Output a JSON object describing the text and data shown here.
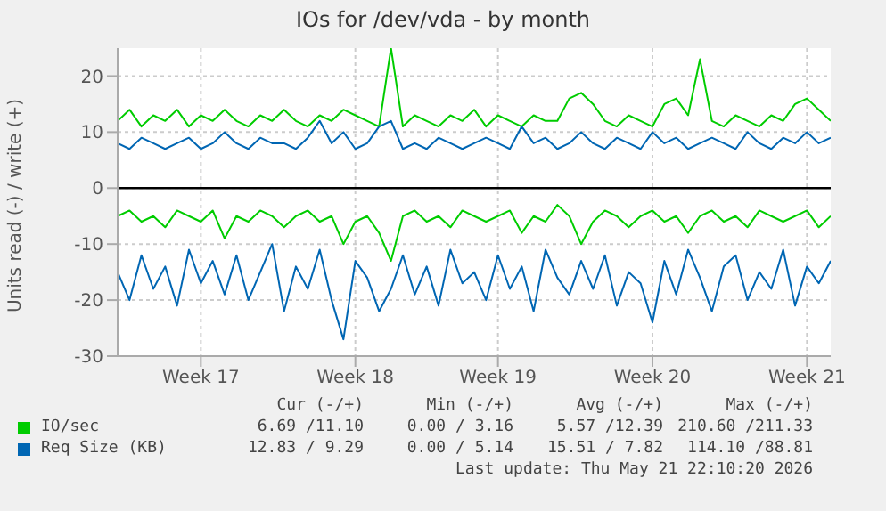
{
  "chart_data": {
    "type": "line",
    "title": "IOs for /dev/vda - by month",
    "ylabel": "Units read (-) / write (+)",
    "categories": [
      null,
      null,
      null,
      null,
      null,
      null,
      null,
      "Week 17",
      null,
      null,
      null,
      null,
      null,
      null,
      null,
      null,
      null,
      null,
      null,
      null,
      "Week 18",
      null,
      null,
      null,
      null,
      null,
      null,
      null,
      null,
      null,
      null,
      null,
      "Week 19",
      null,
      null,
      null,
      null,
      null,
      null,
      null,
      null,
      null,
      null,
      null,
      null,
      "Week 20",
      null,
      null,
      null,
      null,
      null,
      null,
      null,
      null,
      null,
      null,
      null,
      null,
      "Week 21",
      null,
      null
    ],
    "series": [
      {
        "name": "IO/sec",
        "color": "#00cc00",
        "values": [
          12,
          14,
          11,
          13,
          12,
          14,
          11,
          13,
          12,
          14,
          12,
          11,
          13,
          12,
          14,
          12,
          11,
          13,
          12,
          14,
          13,
          12,
          11,
          25,
          11,
          13,
          12,
          11,
          13,
          12,
          14,
          11,
          13,
          12,
          11,
          13,
          12,
          12,
          16,
          17,
          15,
          12,
          11,
          13,
          12,
          11,
          15,
          16,
          13,
          23,
          12,
          11,
          13,
          12,
          11,
          13,
          12,
          15,
          16,
          14,
          12
        ]
      },
      {
        "color": "#00cc00",
        "values": [
          -5,
          -4,
          -6,
          -5,
          -7,
          -4,
          -5,
          -6,
          -4,
          -9,
          -5,
          -6,
          -4,
          -5,
          -7,
          -5,
          -4,
          -6,
          -5,
          -10,
          -6,
          -5,
          -8,
          -13,
          -5,
          -4,
          -6,
          -5,
          -7,
          -4,
          -5,
          -6,
          -5,
          -4,
          -8,
          -5,
          -6,
          -3,
          -5,
          -10,
          -6,
          -4,
          -5,
          -7,
          -5,
          -4,
          -6,
          -5,
          -8,
          -5,
          -4,
          -6,
          -5,
          -7,
          -4,
          -5,
          -6,
          -5,
          -4,
          -7,
          -5
        ]
      },
      {
        "name": "Req Size (KB)",
        "color": "#0066b3",
        "values": [
          8,
          7,
          9,
          8,
          7,
          8,
          9,
          7,
          8,
          10,
          8,
          7,
          9,
          8,
          8,
          7,
          9,
          12,
          8,
          10,
          7,
          8,
          11,
          12,
          7,
          8,
          7,
          9,
          8,
          7,
          8,
          9,
          8,
          7,
          11,
          8,
          9,
          7,
          8,
          10,
          8,
          7,
          9,
          8,
          7,
          10,
          8,
          9,
          7,
          8,
          9,
          8,
          7,
          10,
          8,
          7,
          9,
          8,
          10,
          8,
          9
        ]
      },
      {
        "color": "#0066b3",
        "values": [
          -15,
          -20,
          -12,
          -18,
          -14,
          -21,
          -11,
          -17,
          -13,
          -19,
          -12,
          -20,
          -15,
          -10,
          -22,
          -14,
          -18,
          -11,
          -20,
          -27,
          -13,
          -16,
          -22,
          -18,
          -12,
          -19,
          -14,
          -21,
          -11,
          -17,
          -15,
          -20,
          -12,
          -18,
          -14,
          -22,
          -11,
          -16,
          -19,
          -13,
          -18,
          -12,
          -21,
          -15,
          -17,
          -24,
          -13,
          -19,
          -11,
          -16,
          -22,
          -14,
          -12,
          -20,
          -15,
          -18,
          -11,
          -21,
          -14,
          -17,
          -13
        ]
      }
    ],
    "ylim": [
      -30,
      25
    ],
    "yticks": [
      -30,
      -20,
      -10,
      0,
      10,
      20
    ],
    "ref_lines": [
      {
        "axis": "y",
        "value": 0,
        "color": "#000000"
      }
    ],
    "grid": true,
    "legend": "bottom",
    "marker": "none",
    "line_style": "solid",
    "annotations": [
      "Cur (-/+)",
      "Min (-/+)",
      "Avg (-/+)",
      "Max (-/+)",
      "6.69 /11.10",
      "0.00 / 3.16",
      "5.57 /12.39",
      "210.60 /211.33",
      "12.83 / 9.29",
      "0.00 / 5.14",
      "15.51 / 7.82",
      "114.10 /88.81",
      "Last update: Thu May 21 22:10:20 2026"
    ]
  }
}
